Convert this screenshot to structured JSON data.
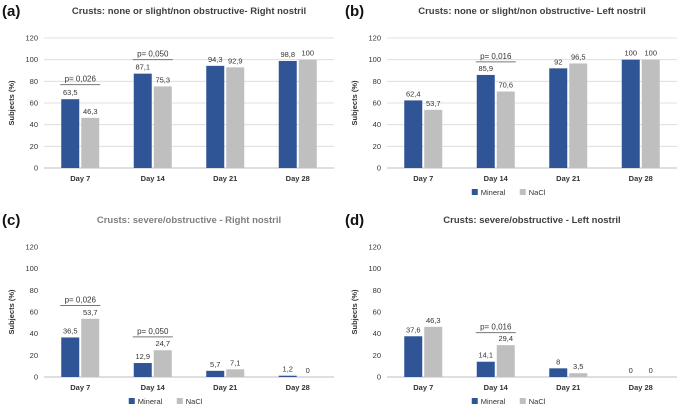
{
  "colors": {
    "Mineral": "#2f5597",
    "NaCl": "#bfbfbf",
    "title": "#404040"
  },
  "chart_data": [
    {
      "type": "bar",
      "panel_label": "(a)",
      "title": "Crusts: none or slight/non obstructive- Right nostril",
      "title_color": "#404040",
      "xlabel": "",
      "ylabel": "Subjects (%)",
      "ylim": [
        0,
        120
      ],
      "yticks": [
        "0",
        "20",
        "40",
        "60",
        "80",
        "100",
        "120"
      ],
      "grid": true,
      "categories": [
        "Day 7",
        "Day 14",
        "Day 21",
        "Day 28"
      ],
      "series": [
        {
          "name": "Mineral",
          "values": [
            63.5,
            87.1,
            94.3,
            98.8
          ],
          "labels": [
            "63,5",
            "87,1",
            "94,3",
            "98,8"
          ]
        },
        {
          "name": "NaCl",
          "values": [
            46.3,
            75.3,
            92.9,
            100
          ],
          "labels": [
            "46,3",
            "75,3",
            "92,9",
            "100"
          ]
        }
      ],
      "legend": {
        "show": false,
        "entries": []
      },
      "annotations": [
        {
          "category_index": 0,
          "text": "p= 0,026",
          "level": 77
        },
        {
          "category_index": 1,
          "text": "p= 0,050",
          "level": 100
        }
      ]
    },
    {
      "type": "bar",
      "panel_label": "(b)",
      "title": "Crusts: none or slight/non obstructive- Left nostril",
      "title_color": "#404040",
      "xlabel": "",
      "ylabel": "Subjects (%)",
      "ylim": [
        0,
        120
      ],
      "yticks": [
        "0",
        "20",
        "40",
        "60",
        "80",
        "100",
        "120"
      ],
      "grid": true,
      "categories": [
        "Day 7",
        "Day 14",
        "Day 21",
        "Day 28"
      ],
      "series": [
        {
          "name": "Mineral",
          "values": [
            62.4,
            85.9,
            92,
            100
          ],
          "labels": [
            "62,4",
            "85,9",
            "92",
            "100"
          ]
        },
        {
          "name": "NaCl",
          "values": [
            53.7,
            70.6,
            96.5,
            100
          ],
          "labels": [
            "53,7",
            "70,6",
            "96,5",
            "100"
          ]
        }
      ],
      "legend": {
        "show": true,
        "entries": [
          "Mineral",
          "NaCl"
        ]
      },
      "annotations": [
        {
          "category_index": 1,
          "text": "p= 0,016",
          "level": 98
        }
      ]
    },
    {
      "type": "bar",
      "panel_label": "(c)",
      "title": "Crusts: severe/obstructive - Right nostril",
      "title_color": "#7f7f7f",
      "xlabel": "",
      "ylabel": "Subjects (%)",
      "ylim": [
        0,
        120
      ],
      "yticks": [
        "0",
        "20",
        "40",
        "60",
        "80",
        "100",
        "120"
      ],
      "grid": false,
      "categories": [
        "Day 7",
        "Day 14",
        "Day 21",
        "Day 28"
      ],
      "series": [
        {
          "name": "Mineral",
          "values": [
            36.5,
            12.9,
            5.7,
            1.2
          ],
          "labels": [
            "36,5",
            "12,9",
            "5,7",
            "1,2"
          ]
        },
        {
          "name": "NaCl",
          "values": [
            53.7,
            24.7,
            7.1,
            0
          ],
          "labels": [
            "53,7",
            "24,7",
            "7,1",
            "0"
          ]
        }
      ],
      "legend": {
        "show": true,
        "entries": [
          "Mineral",
          "NaCl"
        ]
      },
      "annotations": [
        {
          "category_index": 0,
          "text": "p= 0,026",
          "level": 66
        },
        {
          "category_index": 1,
          "text": "p= 0,050",
          "level": 37
        }
      ]
    },
    {
      "type": "bar",
      "panel_label": "(d)",
      "title": "Crusts: severe/obstructive - Left nostril",
      "title_color": "#404040",
      "xlabel": "",
      "ylabel": "Subjects (%)",
      "ylim": [
        0,
        120
      ],
      "yticks": [
        "0",
        "20",
        "40",
        "60",
        "80",
        "100",
        "120"
      ],
      "grid": false,
      "categories": [
        "Day 7",
        "Day 14",
        "Day 21",
        "Day 28"
      ],
      "series": [
        {
          "name": "Mineral",
          "values": [
            37.6,
            14.1,
            8,
            0
          ],
          "labels": [
            "37,6",
            "14,1",
            "8",
            "0"
          ]
        },
        {
          "name": "NaCl",
          "values": [
            46.3,
            29.4,
            3.5,
            0
          ],
          "labels": [
            "46,3",
            "29,4",
            "3,5",
            "0"
          ]
        }
      ],
      "legend": {
        "show": true,
        "entries": [
          "Mineral",
          "NaCl"
        ]
      },
      "annotations": [
        {
          "category_index": 1,
          "text": "p= 0,016",
          "level": 41
        }
      ]
    }
  ]
}
